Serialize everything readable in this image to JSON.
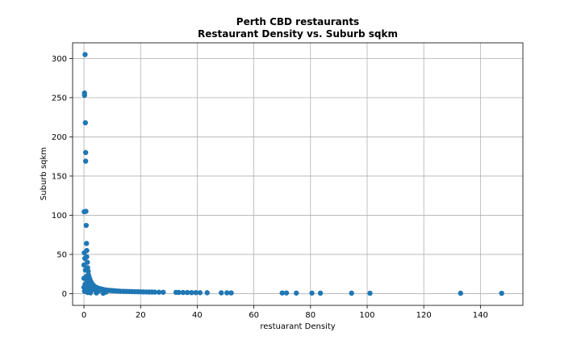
{
  "chart_data": {
    "type": "scatter",
    "title_lines": [
      "Perth CBD restaurants",
      "Restaurant Density vs. Suburb sqkm"
    ],
    "xlabel": "restuarant Density",
    "ylabel": "Suburb sqkm",
    "xlim": [
      -4,
      155
    ],
    "ylim": [
      -15,
      320
    ],
    "xticks": [
      0,
      20,
      40,
      60,
      80,
      100,
      120,
      140
    ],
    "yticks": [
      0,
      50,
      100,
      150,
      200,
      250,
      300
    ],
    "grid": true,
    "marker_color": "#1f77b4",
    "series": [
      {
        "x": [
          0.0,
          0.0,
          0.0,
          0.1,
          0.1,
          0.2,
          0.2,
          0.4,
          0.5,
          0.6,
          0.6,
          0.7,
          0.8,
          0.9,
          1.0,
          1.0,
          1.2,
          1.3,
          1.5,
          1.6,
          1.8,
          2.0,
          2.2,
          2.4,
          2.6,
          2.8,
          3.0,
          3.2,
          3.5,
          3.8,
          4.0,
          4.3,
          4.6,
          5.0,
          5.5,
          6.0,
          6.5,
          7.0,
          7.5,
          8.0,
          8.7,
          9.4,
          10.0,
          10.8,
          11.5,
          12.3,
          13.0,
          14.0,
          15.0,
          16.0,
          17.0,
          18.0,
          19.0,
          20.0,
          21.0,
          22.0,
          23.0,
          24.0,
          25.0,
          26.5,
          28.0,
          32.5,
          33.5,
          35.0,
          36.5,
          38.0,
          39.5,
          41.0,
          43.5,
          48.5,
          50.5,
          52.0,
          70.0,
          71.5,
          75.0,
          80.5,
          83.5,
          94.5,
          101.0,
          133.0,
          147.5,
          0.3,
          0.5,
          0.8,
          1.1,
          1.4,
          2.1,
          2.7,
          3.6,
          5.2,
          7.8,
          0.4,
          0.9,
          1.7,
          0.2,
          0.6,
          1.3,
          2.3,
          4.4,
          6.8
        ],
        "y": [
          19.5,
          36.5,
          8.0,
          52.0,
          104.5,
          256.0,
          253.0,
          305.0,
          218.0,
          180.0,
          169.0,
          105.0,
          87.0,
          64.0,
          55.0,
          47.0,
          40.0,
          33.0,
          28.5,
          24.0,
          21.0,
          19.0,
          17.0,
          15.5,
          14.0,
          13.0,
          12.0,
          11.0,
          10.0,
          9.0,
          8.5,
          8.0,
          7.5,
          7.0,
          6.5,
          6.0,
          5.5,
          5.0,
          4.8,
          4.5,
          4.2,
          4.0,
          3.8,
          3.6,
          3.4,
          3.2,
          3.0,
          2.9,
          2.8,
          2.7,
          2.6,
          2.5,
          2.4,
          2.3,
          2.2,
          2.1,
          2.0,
          2.0,
          1.9,
          1.8,
          1.7,
          1.6,
          1.5,
          1.4,
          1.4,
          1.3,
          1.3,
          1.2,
          1.1,
          1.0,
          1.0,
          0.9,
          0.8,
          0.8,
          0.7,
          0.7,
          0.6,
          0.6,
          0.5,
          0.5,
          0.4,
          45.0,
          30.0,
          22.0,
          16.0,
          12.0,
          9.0,
          7.0,
          5.0,
          3.5,
          2.0,
          12.0,
          6.0,
          4.0,
          3.0,
          2.5,
          1.5,
          1.0,
          0.8,
          0.5
        ]
      }
    ]
  }
}
